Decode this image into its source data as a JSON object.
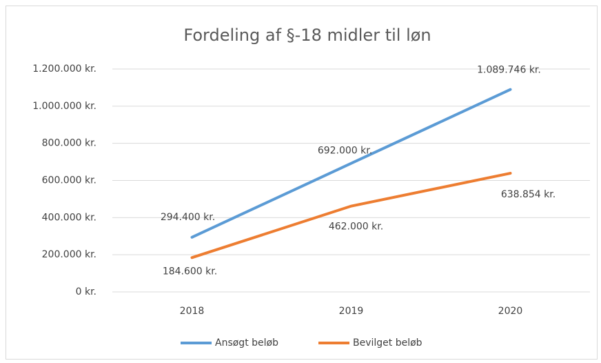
{
  "chart_data": {
    "type": "line",
    "title": "Fordeling af §-18 midler til løn",
    "categories": [
      "2018",
      "2019",
      "2020"
    ],
    "series": [
      {
        "name": "Ansøgt beløb",
        "color": "#5b9bd5",
        "values": [
          294400,
          692000,
          1089746
        ],
        "value_labels": [
          "294.400 kr.",
          "692.000 kr.",
          "1.089.746 kr."
        ]
      },
      {
        "name": "Bevilget beløb",
        "color": "#ed7d31",
        "values": [
          184600,
          462000,
          638854
        ],
        "value_labels": [
          "184.600 kr.",
          "462.000 kr.",
          "638.854 kr."
        ]
      }
    ],
    "ylim": [
      0,
      1200000
    ],
    "yticks": [
      {
        "value": 0,
        "label": "0 kr."
      },
      {
        "value": 200000,
        "label": "200.000 kr."
      },
      {
        "value": 400000,
        "label": "400.000 kr."
      },
      {
        "value": 600000,
        "label": "600.000 kr."
      },
      {
        "value": 800000,
        "label": "800.000 kr."
      },
      {
        "value": 1000000,
        "label": "1.000.000 kr."
      },
      {
        "value": 1200000,
        "label": "1.200.000 kr."
      }
    ],
    "grid": true,
    "legend": "bottom"
  }
}
